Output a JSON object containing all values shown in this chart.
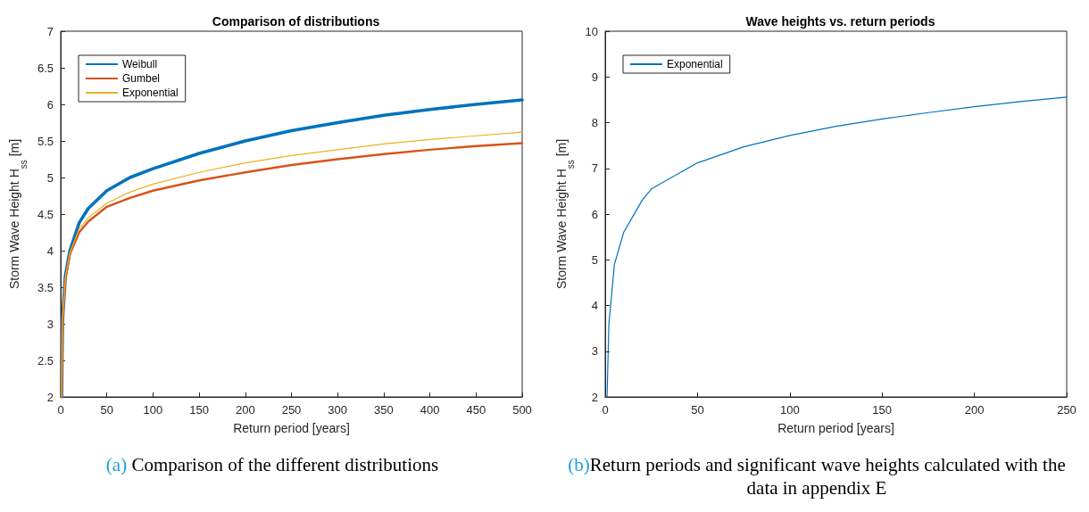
{
  "chart_data": [
    {
      "type": "line",
      "title": "Comparison of distributions",
      "xlabel": "Return period [years]",
      "ylabel": "Storm Wave Height H$_{ss}$ [m]",
      "x": [
        1,
        2,
        5,
        10,
        20,
        30,
        50,
        75,
        100,
        150,
        200,
        250,
        300,
        350,
        400,
        450,
        500
      ],
      "xlim": [
        0,
        500
      ],
      "xticks": [
        0,
        50,
        100,
        150,
        200,
        250,
        300,
        350,
        400,
        450,
        500
      ],
      "ylim": [
        2,
        7
      ],
      "yticks": [
        2,
        2.5,
        3,
        3.5,
        4,
        4.5,
        5,
        5.5,
        6,
        6.5,
        7
      ],
      "grid": false,
      "legend": "top left",
      "marker": "none",
      "line_style": "solid",
      "series": [
        {
          "name": "Weibull",
          "color": "#0072bd",
          "values": [
            2.0,
            3.05,
            3.65,
            4.0,
            4.38,
            4.58,
            4.82,
            5.0,
            5.12,
            5.33,
            5.5,
            5.64,
            5.75,
            5.85,
            5.93,
            6.0,
            6.06
          ]
        },
        {
          "name": "Gumbel",
          "color": "#d95319",
          "values": [
            2.0,
            3.05,
            3.6,
            3.95,
            4.25,
            4.4,
            4.6,
            4.72,
            4.82,
            4.96,
            5.07,
            5.17,
            5.25,
            5.32,
            5.38,
            5.43,
            5.47
          ]
        },
        {
          "name": "Exponential",
          "color": "#edb120",
          "values": [
            2.0,
            3.05,
            3.62,
            3.97,
            4.3,
            4.45,
            4.65,
            4.8,
            4.91,
            5.07,
            5.2,
            5.3,
            5.38,
            5.46,
            5.52,
            5.57,
            5.62
          ]
        }
      ],
      "annotations": [
        "(a) Comparison of the different distributions"
      ]
    },
    {
      "type": "line",
      "title": "Wave heights vs. return periods",
      "xlabel": "Return period [years]",
      "ylabel": "Storm Wave Height H$_{ss}$ [m]",
      "x": [
        1,
        2,
        5,
        10,
        20,
        25,
        50,
        75,
        100,
        125,
        150,
        175,
        200,
        225,
        250
      ],
      "xlim": [
        0,
        250
      ],
      "xticks": [
        0,
        50,
        100,
        150,
        200,
        250
      ],
      "ylim": [
        2,
        10
      ],
      "yticks": [
        2,
        3,
        4,
        5,
        6,
        7,
        8,
        9,
        10
      ],
      "grid": false,
      "legend": "top left",
      "marker": "none",
      "line_style": "solid",
      "series": [
        {
          "name": "Exponential",
          "color": "#0072bd",
          "values": [
            2.0,
            3.6,
            4.9,
            5.6,
            6.3,
            6.55,
            7.12,
            7.47,
            7.72,
            7.92,
            8.08,
            8.22,
            8.35,
            8.46,
            8.56
          ]
        }
      ],
      "annotations": [
        "(b)Return periods and significant wave heights calculated with the data in appendix E"
      ]
    }
  ]
}
